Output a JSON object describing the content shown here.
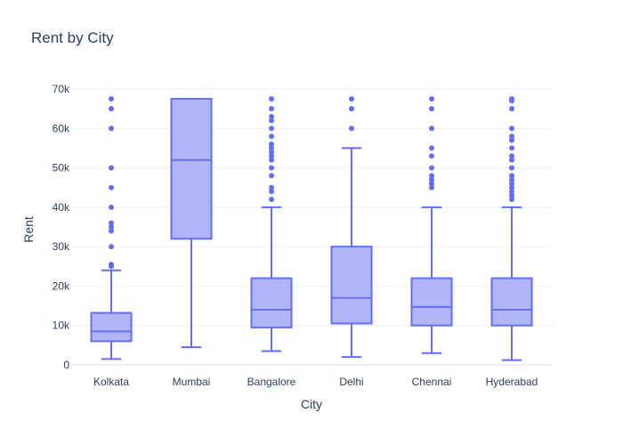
{
  "chart_data": {
    "type": "box",
    "title": "Rent by City",
    "xlabel": "City",
    "ylabel": "Rent",
    "ylim": [
      0,
      70000
    ],
    "y_ticks": [
      0,
      10000,
      20000,
      30000,
      40000,
      50000,
      60000,
      70000
    ],
    "y_tick_labels": [
      "0",
      "10k",
      "20k",
      "30k",
      "40k",
      "50k",
      "60k",
      "70k"
    ],
    "grid": true,
    "color": "#636efa",
    "fill_color": "#b2b6f6",
    "categories": [
      "Kolkata",
      "Mumbai",
      "Bangalore",
      "Delhi",
      "Chennai",
      "Hyderabad"
    ],
    "boxes": [
      {
        "category": "Kolkata",
        "min": 1500,
        "q1": 6000,
        "median": 8500,
        "q3": 13200,
        "max": 24000,
        "outliers": [
          25000,
          25500,
          30000,
          34000,
          35000,
          36000,
          40000,
          45000,
          50000,
          60000,
          65000,
          67500
        ]
      },
      {
        "category": "Mumbai",
        "min": 4500,
        "q1": 32000,
        "median": 52000,
        "q3": 67500,
        "max": 67500,
        "outliers": []
      },
      {
        "category": "Bangalore",
        "min": 3500,
        "q1": 9500,
        "median": 14000,
        "q3": 22000,
        "max": 40000,
        "outliers": [
          42000,
          44000,
          45000,
          48000,
          50000,
          52000,
          53000,
          54000,
          55000,
          56000,
          58000,
          60000,
          62000,
          63000,
          65000,
          67500
        ]
      },
      {
        "category": "Delhi",
        "min": 2000,
        "q1": 10500,
        "median": 17000,
        "q3": 30000,
        "max": 55000,
        "outliers": [
          60000,
          65000,
          67500
        ]
      },
      {
        "category": "Chennai",
        "min": 3000,
        "q1": 10000,
        "median": 14700,
        "q3": 22000,
        "max": 40000,
        "outliers": [
          45000,
          46000,
          47000,
          48000,
          50000,
          53000,
          55000,
          60000,
          65000,
          67500
        ]
      },
      {
        "category": "Hyderabad",
        "min": 1200,
        "q1": 10000,
        "median": 14000,
        "q3": 22000,
        "max": 40000,
        "outliers": [
          42000,
          43000,
          44000,
          45000,
          46000,
          47000,
          48000,
          50000,
          52000,
          53000,
          55000,
          57000,
          58000,
          60000,
          65000,
          67000,
          67500
        ]
      }
    ]
  }
}
